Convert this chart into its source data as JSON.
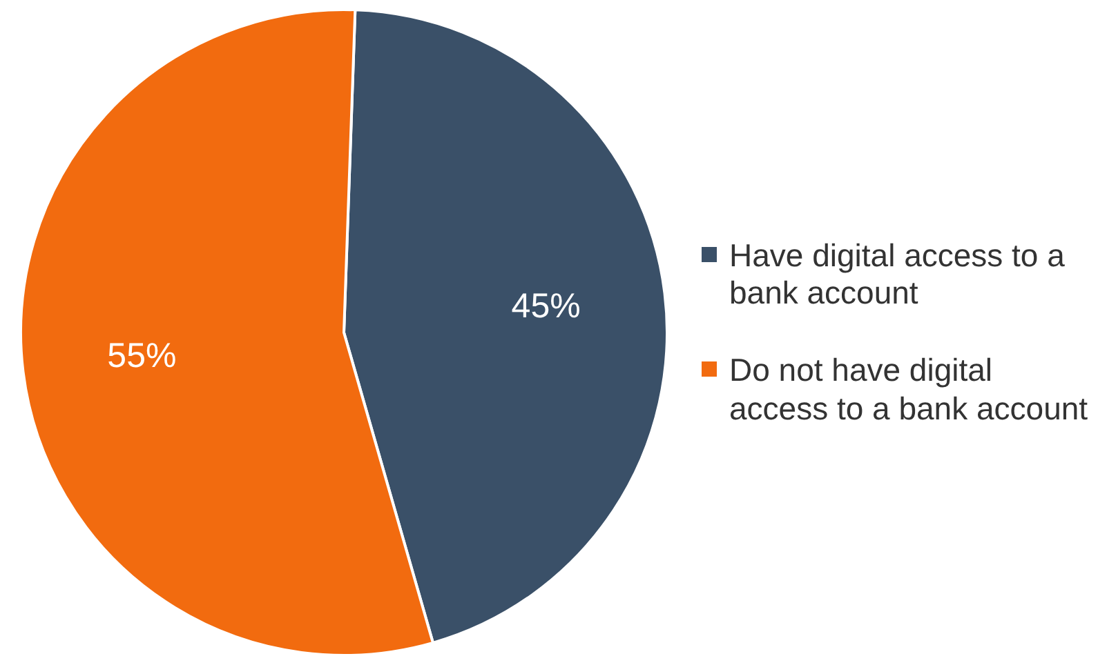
{
  "chart_data": {
    "type": "pie",
    "categories": [
      "Have digital access to a bank account",
      "Do not have digital access to a bank account"
    ],
    "values": [
      45,
      55
    ],
    "colors": [
      "#3a5068",
      "#f26b0f"
    ],
    "value_labels": [
      "45%",
      "55%"
    ],
    "legend": "right"
  }
}
